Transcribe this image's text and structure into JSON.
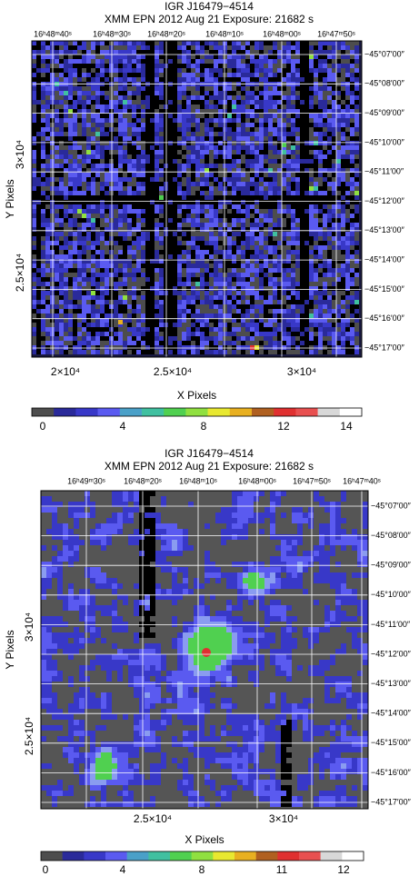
{
  "panels": [
    {
      "title": "IGR J16479−4514",
      "subtitle": "XMM EPN   2012 Aug 21    Exposure: 21682 s",
      "top_labels": [
        "16ʰ48ᵐ40ˢ",
        "16ʰ48ᵐ30ˢ",
        "16ʰ48ᵐ20ˢ",
        "16ʰ48ᵐ10ˢ",
        "16ʰ48ᵐ00ˢ",
        "16ʰ47ᵐ50ˢ"
      ],
      "right_labels": [
        "−45°07′00″",
        "−45°08′00″",
        "−45°09′00″",
        "−45°10′00″",
        "−45°11′00″",
        "−45°12′00″",
        "−45°13′00″",
        "−45°14′00″",
        "−45°15′00″",
        "−45°16′00″",
        "−45°17′00″"
      ],
      "left_labels": [
        "3×10⁴",
        "2.5×10⁴"
      ],
      "bottom_labels": [
        "2×10⁴",
        "2.5×10⁴",
        "3×10⁴"
      ],
      "x_label": "X Pixels",
      "y_label": "Y Pixels",
      "colorbar_labels": [
        "0",
        "4",
        "8",
        "12",
        "14"
      ]
    },
    {
      "title": "IGR J16479−4514",
      "subtitle": "XMM EPN   2012 Aug 21    Exposure: 21682 s",
      "top_labels": [
        "16ʰ49ᵐ30ˢ",
        "16ʰ48ᵐ20ˢ",
        "16ʰ48ᵐ10ˢ",
        "16ʰ48ᵐ00ˢ",
        "16ʰ47ᵐ50ˢ",
        "16ʰ47ᵐ40ˢ"
      ],
      "right_labels": [
        "−45°07′00″",
        "−45°08′00″",
        "−45°09′00″",
        "−45°10′00″",
        "−45°11′00″",
        "−45°12′00″",
        "−45°13′00″",
        "−45°14′00″",
        "−45°15′00″",
        "−45°16′00″",
        "−45°17′00″"
      ],
      "left_labels": [
        "3×10⁴",
        "2.5×10⁴"
      ],
      "bottom_labels": [
        "2.5×10⁴",
        "3×10⁴"
      ],
      "x_label": "X Pixels",
      "y_label": "Y Pixels",
      "colorbar_labels": [
        "0",
        "4",
        "8",
        "11",
        "12"
      ]
    }
  ],
  "colorbar_colors": [
    "#4d4d4d",
    "#2a2a9a",
    "#3838c8",
    "#5a5af0",
    "#4aa0c8",
    "#40c0a0",
    "#50d050",
    "#90e040",
    "#e8e830",
    "#e8b020",
    "#b06020",
    "#e03030",
    "#e85050",
    "#d8d8d8",
    "#ffffff"
  ]
}
